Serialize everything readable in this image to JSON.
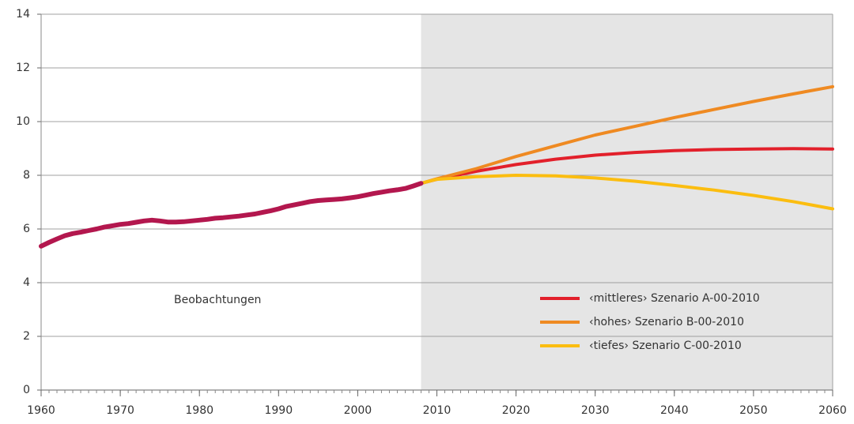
{
  "chart_data": {
    "type": "line",
    "xlim": [
      1960,
      2060
    ],
    "xticks": [
      1960,
      1970,
      1980,
      1990,
      2000,
      2010,
      2020,
      2030,
      2040,
      2050,
      2060
    ],
    "x_minor_step": 1,
    "ylim": [
      0,
      14
    ],
    "yticks": [
      0,
      2,
      4,
      6,
      8,
      10,
      12,
      14
    ],
    "grid": true,
    "shade_from": 2008,
    "shade_color": "#e5e5e5",
    "legend": "lower right",
    "series": [
      {
        "name": "Beobachtungen",
        "color": "#b3174e",
        "in_legend": false,
        "x": [
          1960,
          1961,
          1962,
          1963,
          1964,
          1965,
          1966,
          1967,
          1968,
          1969,
          1970,
          1971,
          1972,
          1973,
          1974,
          1975,
          1976,
          1977,
          1978,
          1979,
          1980,
          1981,
          1982,
          1983,
          1984,
          1985,
          1986,
          1987,
          1988,
          1989,
          1990,
          1991,
          1992,
          1993,
          1994,
          1995,
          1996,
          1997,
          1998,
          1999,
          2000,
          2001,
          2002,
          2003,
          2004,
          2005,
          2006,
          2007,
          2008
        ],
        "values": [
          5.36,
          5.5,
          5.63,
          5.75,
          5.83,
          5.88,
          5.94,
          6.0,
          6.07,
          6.12,
          6.17,
          6.2,
          6.25,
          6.3,
          6.33,
          6.3,
          6.26,
          6.26,
          6.27,
          6.3,
          6.33,
          6.36,
          6.4,
          6.42,
          6.45,
          6.48,
          6.52,
          6.56,
          6.62,
          6.68,
          6.75,
          6.84,
          6.9,
          6.96,
          7.02,
          7.06,
          7.08,
          7.1,
          7.12,
          7.16,
          7.2,
          7.26,
          7.32,
          7.37,
          7.42,
          7.46,
          7.51,
          7.6,
          7.7
        ]
      },
      {
        "name": "‹mittleres› Szenario A-00-2010",
        "color": "#e2202b",
        "in_legend": true,
        "x": [
          2008,
          2010,
          2015,
          2020,
          2025,
          2030,
          2035,
          2040,
          2045,
          2050,
          2055,
          2060
        ],
        "values": [
          7.7,
          7.85,
          8.15,
          8.4,
          8.6,
          8.75,
          8.85,
          8.92,
          8.96,
          8.98,
          8.99,
          8.98
        ]
      },
      {
        "name": "‹hohes› Szenario B-00-2010",
        "color": "#ef8a22",
        "in_legend": true,
        "x": [
          2008,
          2010,
          2015,
          2020,
          2025,
          2030,
          2035,
          2040,
          2045,
          2050,
          2055,
          2060
        ],
        "values": [
          7.7,
          7.87,
          8.25,
          8.7,
          9.1,
          9.5,
          9.82,
          10.15,
          10.45,
          10.75,
          11.03,
          11.3
        ]
      },
      {
        "name": "‹tiefes› Szenario C-00-2010",
        "color": "#fbbd10",
        "in_legend": true,
        "x": [
          2008,
          2010,
          2015,
          2020,
          2025,
          2030,
          2035,
          2040,
          2045,
          2050,
          2055,
          2060
        ],
        "values": [
          7.7,
          7.85,
          7.95,
          8.0,
          7.98,
          7.9,
          7.78,
          7.62,
          7.45,
          7.25,
          7.02,
          6.75
        ]
      }
    ]
  }
}
